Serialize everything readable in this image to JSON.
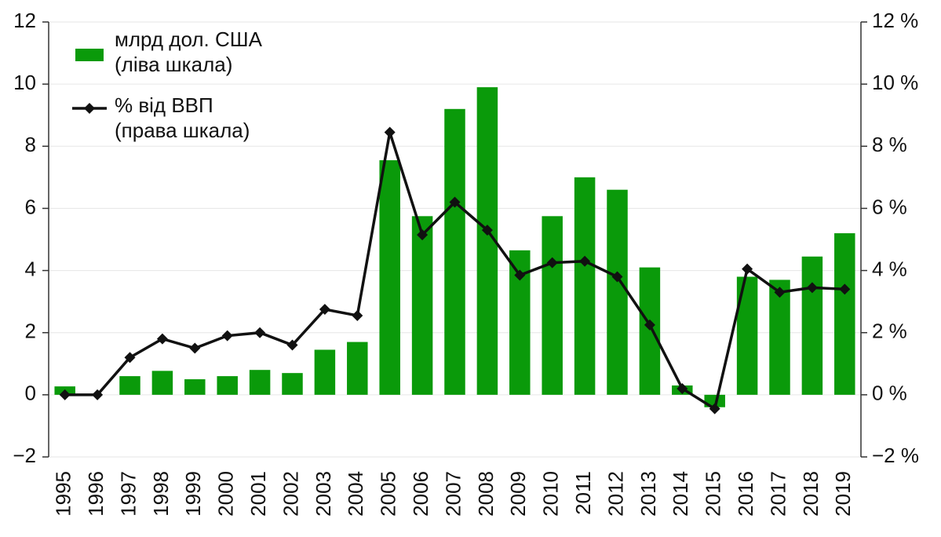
{
  "chart_data": {
    "type": "bar-line",
    "categories": [
      "1995",
      "1996",
      "1997",
      "1998",
      "1999",
      "2000",
      "2001",
      "2002",
      "2003",
      "2004",
      "2005",
      "2006",
      "2007",
      "2008",
      "2009",
      "2010",
      "2011",
      "2012",
      "2013",
      "2014",
      "2015",
      "2016",
      "2017",
      "2018",
      "2019"
    ],
    "series": [
      {
        "name": "млрд дол. США\n(ліва шкала)",
        "type": "bar",
        "color": "#0a9a0a",
        "values": [
          0.27,
          0,
          0.6,
          0.77,
          0.5,
          0.6,
          0.8,
          0.7,
          1.45,
          1.7,
          7.55,
          5.75,
          9.2,
          9.9,
          4.65,
          5.75,
          7.0,
          6.6,
          4.1,
          0.3,
          -0.4,
          3.8,
          3.7,
          4.45,
          5.2
        ]
      },
      {
        "name": "% від ВВП\n(права шкала)",
        "type": "line",
        "axis": "y2",
        "color": "#111111",
        "values": [
          0.0,
          0.0,
          1.2,
          1.8,
          1.5,
          1.9,
          2.0,
          1.6,
          2.75,
          2.55,
          8.45,
          5.15,
          6.2,
          5.3,
          3.85,
          4.25,
          4.3,
          3.8,
          2.25,
          0.2,
          -0.45,
          4.05,
          3.3,
          3.45,
          3.4
        ]
      }
    ],
    "ylim": [
      -2,
      12
    ],
    "yticks": [
      {
        "value": -2,
        "label": "−2"
      },
      0,
      2,
      4,
      6,
      8,
      10,
      12
    ],
    "y2lim": [
      -2,
      12
    ],
    "y2ticks": [
      {
        "value": -2,
        "label": "−2 %"
      },
      {
        "value": 0,
        "label": "0 %"
      },
      {
        "value": 2,
        "label": "2 %"
      },
      {
        "value": 4,
        "label": "4 %"
      },
      {
        "value": 6,
        "label": "6 %"
      },
      {
        "value": 8,
        "label": "8 %"
      },
      {
        "value": 10,
        "label": "10 %"
      },
      {
        "value": 12,
        "label": "12 %"
      }
    ],
    "grid": true,
    "legend": "top-left"
  }
}
